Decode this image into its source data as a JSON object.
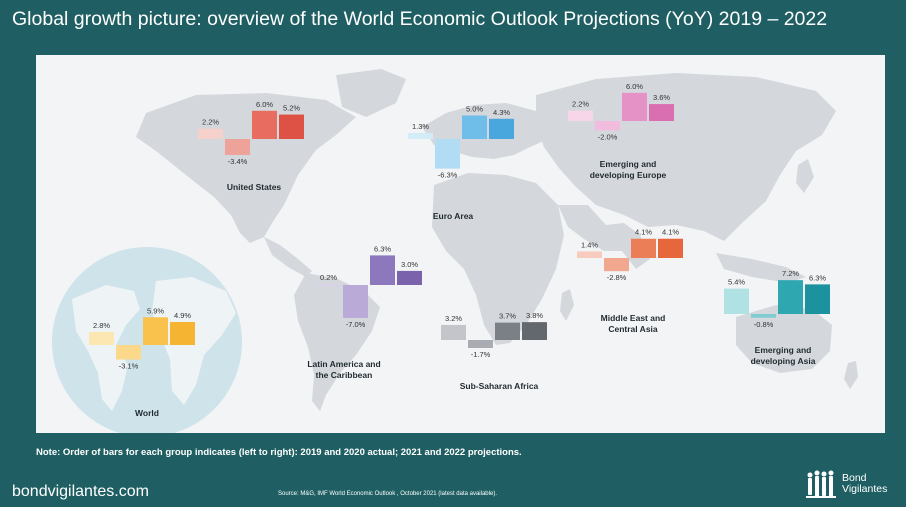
{
  "title": "Global growth picture: overview of the World Economic Outlook Projections (YoY) 2019 – 2022",
  "note": "Note: Order of bars for each group indicates (left to right): 2019 and 2020 actual; 2021 and 2022 projections.",
  "site": "bondvigilantes.com",
  "source": "Source: M&G, IMF World Economic Outlook , October 2021 (latest data available).",
  "brand": {
    "line1": "Bond",
    "line2": "Vigilantes"
  },
  "colors": {
    "background": "#1f5f63",
    "panel": "#f3f4f6",
    "land": "#d4d7dc",
    "globe": "#cfe3ea"
  },
  "chart_data": {
    "type": "bar",
    "bar_order": [
      "2019",
      "2020",
      "2021",
      "2022"
    ],
    "value_format": "percent, one decimal",
    "series": [
      {
        "name": "United States",
        "values": [
          2.2,
          -3.4,
          6.0,
          5.2
        ],
        "labels": [
          "2.2%",
          "-3.4%",
          "6.0%",
          "5.2%"
        ],
        "colors": [
          "#f6d0cb",
          "#eea39a",
          "#e86c5f",
          "#dd5245"
        ]
      },
      {
        "name": "Euro Area",
        "values": [
          1.3,
          -6.3,
          5.0,
          4.3
        ],
        "labels": [
          "1.3%",
          "-6.3%",
          "5.0%",
          "4.3%"
        ],
        "colors": [
          "#d3ecf8",
          "#b1dcf4",
          "#6fbde9",
          "#49a7de"
        ]
      },
      {
        "name": "Emerging and developing Europe",
        "values": [
          2.2,
          -2.0,
          6.0,
          3.6
        ],
        "labels": [
          "2.2%",
          "-2.0%",
          "6.0%",
          "3.6%"
        ],
        "colors": [
          "#f7d6ea",
          "#f1bcdd",
          "#e593c6",
          "#d96eb0"
        ]
      },
      {
        "name": "Latin America and the Caribbean",
        "values": [
          0.2,
          -7.0,
          6.3,
          3.0
        ],
        "labels": [
          "0.2%",
          "-7.0%",
          "6.3%",
          "3.0%"
        ],
        "colors": [
          "#d9d1ea",
          "#b9aad8",
          "#8d77bd",
          "#7a62ad"
        ]
      },
      {
        "name": "Sub-Saharan Africa",
        "values": [
          3.2,
          -1.7,
          3.7,
          3.8
        ],
        "labels": [
          "3.2%",
          "-1.7%",
          "3.7%",
          "3.8%"
        ],
        "colors": [
          "#c3c5ca",
          "#a9acb2",
          "#7b7f86",
          "#63676e"
        ]
      },
      {
        "name": "Middle East and Central Asia",
        "values": [
          1.4,
          -2.8,
          4.1,
          4.1
        ],
        "labels": [
          "1.4%",
          "-2.8%",
          "4.1%",
          "4.1%"
        ],
        "colors": [
          "#f7ccbf",
          "#f1a88f",
          "#eb7e57",
          "#e5673b"
        ]
      },
      {
        "name": "Emerging and developing Asia",
        "values": [
          5.4,
          -0.8,
          7.2,
          6.3
        ],
        "labels": [
          "5.4%",
          "-0.8%",
          "7.2%",
          "6.3%"
        ],
        "colors": [
          "#b0e1e3",
          "#80ccd2",
          "#2ea7b1",
          "#1b929e"
        ]
      },
      {
        "name": "World",
        "values": [
          2.8,
          -3.1,
          5.9,
          4.9
        ],
        "labels": [
          "2.8%",
          "-3.1%",
          "5.9%",
          "4.9%"
        ],
        "colors": [
          "#fce7b2",
          "#fbd88a",
          "#f8c24c",
          "#f5b532"
        ]
      }
    ]
  }
}
